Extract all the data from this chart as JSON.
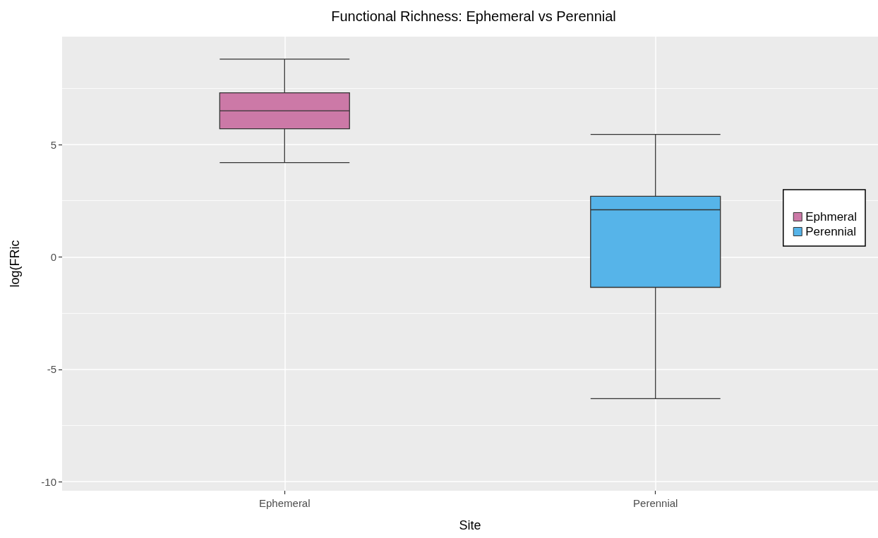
{
  "chart_data": {
    "type": "box",
    "title": "Functional Richness: Ephemeral vs Perennial",
    "xlabel": "Site",
    "ylabel": "log(FRic",
    "categories": [
      "Ephemeral",
      "Perennial"
    ],
    "series": [
      {
        "name": "Ephmeral",
        "color": "#cc79a7",
        "boxes": [
          {
            "low": 4.2,
            "q1": 5.7,
            "median": 6.5,
            "q3": 7.3,
            "high": 8.8
          },
          null
        ]
      },
      {
        "name": "Perennial",
        "color": "#56b4e9",
        "boxes": [
          null,
          {
            "low": -6.3,
            "q1": -1.35,
            "median": 2.1,
            "q3": 2.7,
            "high": 5.45
          }
        ]
      }
    ],
    "ylim": [
      -10.4,
      9.8
    ],
    "yticks": [
      -10,
      {
        "value": -7.5,
        "label": null
      },
      -5,
      {
        "value": -2.5,
        "label": null
      },
      0,
      {
        "value": 2.5,
        "label": null
      },
      5,
      {
        "value": 7.5,
        "label": null
      }
    ],
    "grid": true,
    "legend": "right"
  }
}
